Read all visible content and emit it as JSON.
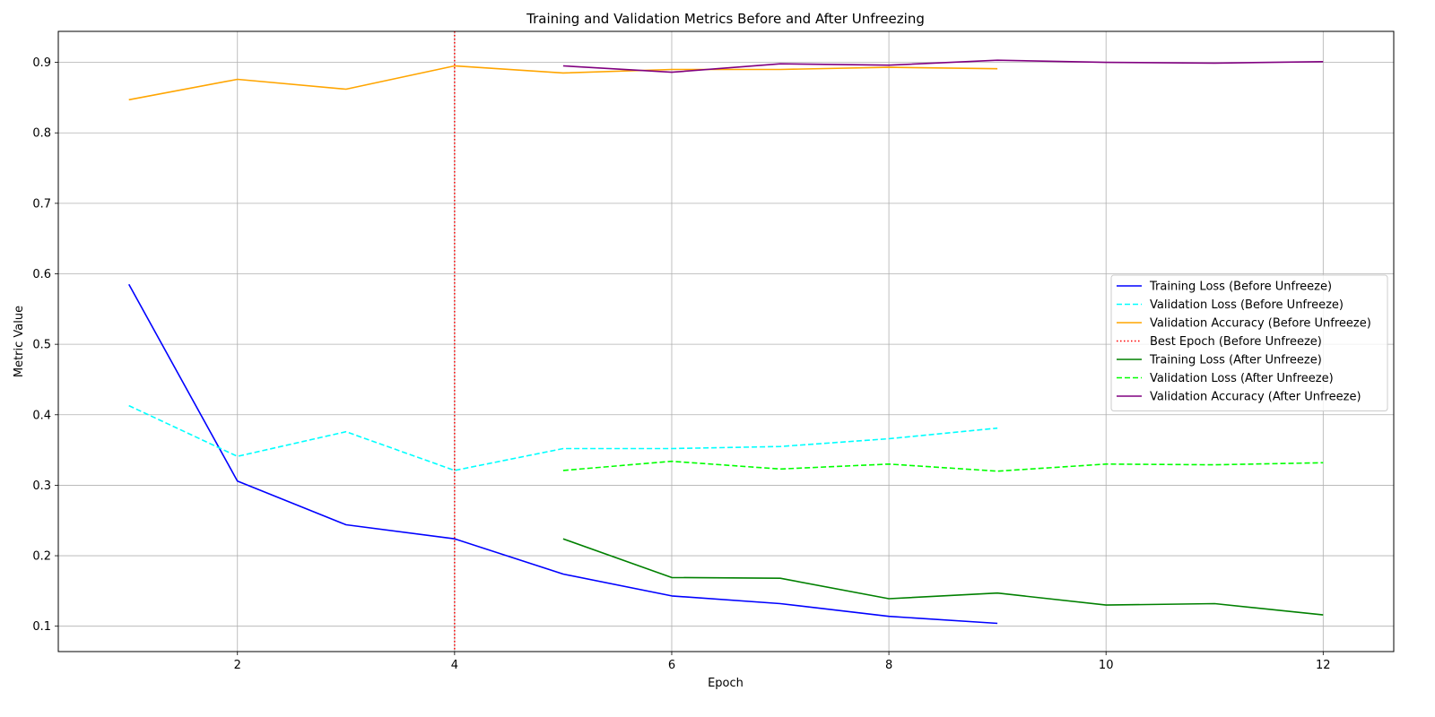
{
  "chart_data": {
    "type": "line",
    "title": "Training and Validation Metrics Before and After Unfreezing",
    "xlabel": "Epoch",
    "ylabel": "Metric Value",
    "xlim": [
      0.35,
      12.65
    ],
    "ylim": [
      0.064,
      0.944
    ],
    "xticks": [
      2,
      4,
      6,
      8,
      10,
      12
    ],
    "yticks": [
      0.1,
      0.2,
      0.3,
      0.4,
      0.5,
      0.6,
      0.7,
      0.8,
      0.9
    ],
    "grid": true,
    "legend_position": "center-right",
    "series": [
      {
        "name": "Training Loss (Before Unfreeze)",
        "color": "#0000ff",
        "dash": "solid",
        "x": [
          1,
          2,
          3,
          4,
          5,
          6,
          7,
          8,
          9
        ],
        "y": [
          0.585,
          0.306,
          0.244,
          0.224,
          0.174,
          0.143,
          0.132,
          0.114,
          0.104
        ]
      },
      {
        "name": "Validation Loss (Before Unfreeze)",
        "color": "#00ffff",
        "dash": "dashed",
        "x": [
          1,
          2,
          3,
          4,
          5,
          6,
          7,
          8,
          9
        ],
        "y": [
          0.413,
          0.341,
          0.376,
          0.321,
          0.352,
          0.352,
          0.355,
          0.366,
          0.381
        ]
      },
      {
        "name": "Validation Accuracy (Before Unfreeze)",
        "color": "#ffa500",
        "dash": "solid",
        "x": [
          1,
          2,
          3,
          4,
          5,
          6,
          7,
          8,
          9
        ],
        "y": [
          0.847,
          0.876,
          0.862,
          0.895,
          0.885,
          0.89,
          0.89,
          0.893,
          0.891
        ]
      },
      {
        "name": "Best Epoch (Before Unfreeze)",
        "color": "#ff0000",
        "dash": "dotted",
        "type": "vline",
        "x": [
          4
        ]
      },
      {
        "name": "Training Loss (After Unfreeze)",
        "color": "#008000",
        "dash": "solid",
        "x": [
          5,
          6,
          7,
          8,
          9,
          10,
          11,
          12
        ],
        "y": [
          0.224,
          0.169,
          0.168,
          0.139,
          0.147,
          0.13,
          0.132,
          0.116
        ]
      },
      {
        "name": "Validation Loss (After Unfreeze)",
        "color": "#00ff00",
        "dash": "dashed",
        "x": [
          5,
          6,
          7,
          8,
          9,
          10,
          11,
          12
        ],
        "y": [
          0.321,
          0.334,
          0.323,
          0.33,
          0.32,
          0.33,
          0.329,
          0.332
        ]
      },
      {
        "name": "Validation Accuracy (After Unfreeze)",
        "color": "#800080",
        "dash": "solid",
        "x": [
          5,
          6,
          7,
          8,
          9,
          10,
          11,
          12
        ],
        "y": [
          0.895,
          0.886,
          0.898,
          0.896,
          0.903,
          0.9,
          0.899,
          0.901
        ]
      }
    ]
  }
}
